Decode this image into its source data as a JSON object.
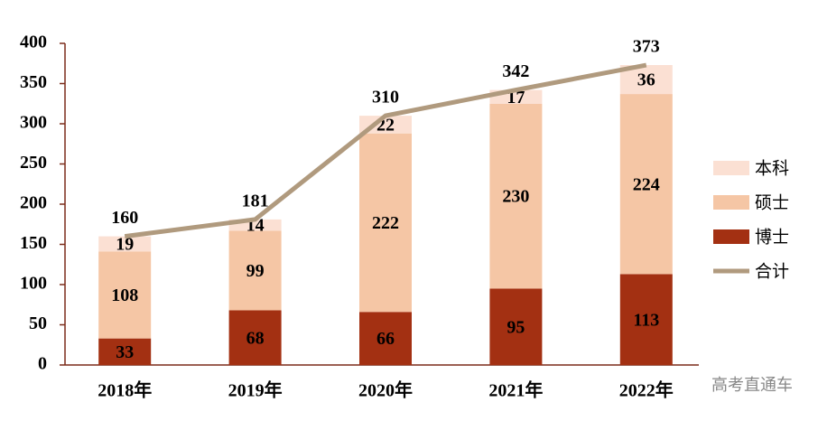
{
  "chart_data": {
    "type": "stacked-bar-line",
    "categories": [
      "2018年",
      "2019年",
      "2020年",
      "2021年",
      "2022年"
    ],
    "series": [
      {
        "name": "博士",
        "color": "#a33012",
        "values": [
          33,
          68,
          66,
          95,
          113
        ]
      },
      {
        "name": "硕士",
        "color": "#f5c6a5",
        "values": [
          108,
          99,
          222,
          230,
          224
        ]
      },
      {
        "name": "本科",
        "color": "#fbe0d3",
        "values": [
          19,
          14,
          22,
          17,
          36
        ]
      },
      {
        "name": "合计",
        "type": "line",
        "color": "#b09a7e",
        "values": [
          160,
          181,
          310,
          342,
          373
        ]
      }
    ],
    "ylim": [
      0,
      400
    ],
    "yticks": [
      0,
      50,
      100,
      150,
      200,
      250,
      300,
      350,
      400
    ],
    "legend_position": "right",
    "watermark": "高考直通车"
  }
}
